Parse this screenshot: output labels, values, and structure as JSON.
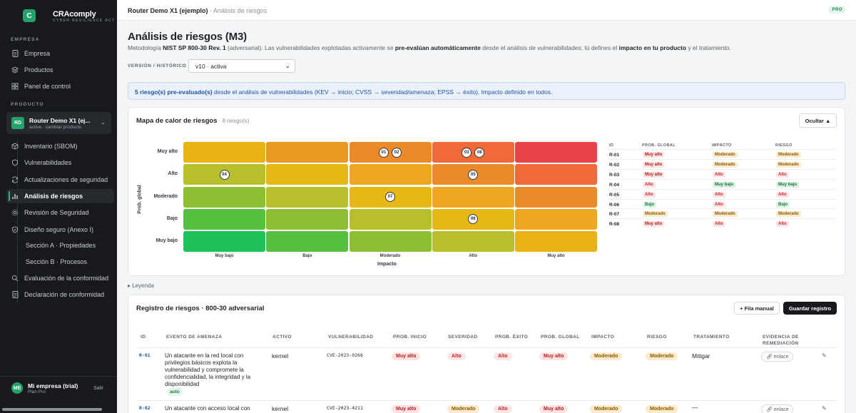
{
  "sidebar": {
    "logo_letter": "C",
    "brand": "CRAcomply",
    "brand_sub": "CYBER RESILIENCE ACT",
    "empresa_label": "EMPRESA",
    "empresa_items": [
      {
        "label": "Empresa",
        "icon": "document-icon"
      },
      {
        "label": "Productos",
        "icon": "layers-icon"
      },
      {
        "label": "Panel de control",
        "icon": "grid-icon"
      }
    ],
    "producto_label": "PRODUCTO",
    "product": {
      "initials": "RD",
      "name": "Router Demo X1 (ej...",
      "status": "active · cambiar producto"
    },
    "product_items": [
      {
        "label": "Inventario (SBOM)",
        "icon": "box-icon"
      },
      {
        "label": "Vulnerabilidades",
        "icon": "shield-icon"
      },
      {
        "label": "Actualizaciones de seguridad",
        "icon": "refresh-icon"
      },
      {
        "label": "Análisis de riesgos",
        "icon": "chart-bars-icon"
      },
      {
        "label": "Revisión de Seguridad",
        "icon": "gear-icon"
      },
      {
        "label": "Diseño seguro (Anexo I)",
        "icon": "shield-check-icon"
      },
      {
        "label": "Sección A · Propiedades",
        "icon": ""
      },
      {
        "label": "Sección B · Procesos",
        "icon": ""
      },
      {
        "label": "Evaluación de la conformidad",
        "icon": "search-icon"
      },
      {
        "label": "Declaración de conformidad",
        "icon": "document-icon"
      }
    ],
    "user": {
      "initials": "ME",
      "name": "Mi empresa (trial)",
      "plan": "Plan Pro",
      "logout": "Salir"
    }
  },
  "topbar": {
    "product": "Router Demo X1 (ejemplo)",
    "separator": " · ",
    "page": "Análisis de riesgos",
    "badge": "PRO"
  },
  "header": {
    "title": "Análisis de riesgos (M3)",
    "desc": {
      "p1": "Metodología ",
      "b1": "NIST SP 800-30 Rev. 1",
      "p2": " (adversarial). Las vulnerabilidades explotadas activamente se ",
      "b2": "pre-evalúan automáticamente",
      "p3": " desde el análisis de vulnerabilidades; tú defines el ",
      "b3": "impacto en tu producto",
      "p4": " y el tratamiento."
    },
    "version_label": "VERSIÓN / HISTÓRICO",
    "version_value": "v10 · activa"
  },
  "info": {
    "bold": "5 riesgo(s) pre-evaluado(s)",
    "text": " desde el análisis de vulnerabilidades (KEV → inicio; CVSS → severidad/amenaza; EPSS → éxito). Impacto definido en todos."
  },
  "heatmap": {
    "title": "Mapa de calor de riesgos",
    "count": " · 8 riesgo(s)",
    "hide_button": "Ocultar ▲",
    "y_title": "Prob. global",
    "x_title": "Impacto",
    "y_levels": [
      "Muy alto",
      "Alto",
      "Moderado",
      "Bajo",
      "Muy bajo"
    ],
    "x_levels": [
      "Muy bajo",
      "Bajo",
      "Moderado",
      "Alto",
      "Muy alto"
    ],
    "colors": [
      [
        "#e9b316",
        "#ea9a23",
        "#ec8a2a",
        "#ef6a37",
        "#e9434a"
      ],
      [
        "#b8bf2c",
        "#e7b714",
        "#eea623",
        "#ec8a2a",
        "#ef6a37"
      ],
      [
        "#8cbf33",
        "#b8bf2c",
        "#e7b714",
        "#eea623",
        "#ec8a2a"
      ],
      [
        "#56c03f",
        "#8cbf33",
        "#b8bf2c",
        "#e7b714",
        "#eea623"
      ],
      [
        "#22c05a",
        "#56c03f",
        "#8cbf33",
        "#b8bf2c",
        "#e9b316"
      ]
    ],
    "markers": [
      {
        "id": "01",
        "row": 0,
        "col": 2,
        "slot": 0
      },
      {
        "id": "02",
        "row": 0,
        "col": 2,
        "slot": 1
      },
      {
        "id": "03",
        "row": 0,
        "col": 3,
        "slot": 0
      },
      {
        "id": "08",
        "row": 0,
        "col": 3,
        "slot": 1
      },
      {
        "id": "04",
        "row": 1,
        "col": 0,
        "slot": 0
      },
      {
        "id": "05",
        "row": 1,
        "col": 3,
        "slot": 0
      },
      {
        "id": "07",
        "row": 2,
        "col": 2,
        "slot": 0
      },
      {
        "id": "06",
        "row": 3,
        "col": 3,
        "slot": 0
      }
    ],
    "table": {
      "headers": [
        "ID",
        "PROB. GLOBAL",
        "IMPACTO",
        "RIESGO"
      ],
      "rows": [
        {
          "id": "R-01",
          "prob": "Muy alto",
          "impact": "Moderado",
          "risk": "Moderado"
        },
        {
          "id": "R-02",
          "prob": "Muy alto",
          "impact": "Moderado",
          "risk": "Moderado"
        },
        {
          "id": "R-03",
          "prob": "Muy alto",
          "impact": "Alto",
          "risk": "Alto"
        },
        {
          "id": "R-04",
          "prob": "Alto",
          "impact": "Muy bajo",
          "risk": "Muy bajo"
        },
        {
          "id": "R-05",
          "prob": "Alto",
          "impact": "Alto",
          "risk": "Alto"
        },
        {
          "id": "R-06",
          "prob": "Bajo",
          "impact": "Alto",
          "risk": "Bajo"
        },
        {
          "id": "R-07",
          "prob": "Moderado",
          "impact": "Moderado",
          "risk": "Moderado"
        },
        {
          "id": "R-08",
          "prob": "Muy alto",
          "impact": "Alto",
          "risk": "Alto"
        }
      ]
    }
  },
  "legend_toggle": "▸ Leyenda",
  "register": {
    "title": "Registro de riesgos · 800-30 adversarial",
    "add_button": "+ Fila manual",
    "save_button": "Guardar registro",
    "headers": [
      "ID",
      "EVENTO DE AMENAZA",
      "ACTIVO",
      "VULNERABILIDAD",
      "PROB. INICIO",
      "SEVERIDAD",
      "PROB. ÉXITO",
      "PROB. GLOBAL",
      "IMPACTO",
      "RIESGO",
      "TRATAMIENTO",
      "EVIDENCIA DE\nREMEDIACIÓN"
    ],
    "rows": [
      {
        "id": "R-01",
        "event": "Un atacante en la red local con privilegios básicos explota la vulnerabilidad y compromete la confidencialidad, la integridad y la disponibilidad",
        "asset": "kernel",
        "vuln": "CVE-2023-0266",
        "p_inicio": "Muy alto",
        "severidad": "Alto",
        "p_exito": "Alto",
        "p_global": "Muy alto",
        "impacto": "Moderado",
        "riesgo": "Moderado",
        "tratamiento": "Mitigar",
        "evidence": "enlace",
        "tag": "auto"
      },
      {
        "id": "R-02",
        "event": "Un atacante con acceso local con",
        "asset": "kernel",
        "vuln": "CVE-2023-4211",
        "p_inicio": "Muy alto",
        "severidad": "Moderado",
        "p_exito": "Alto",
        "p_global": "Muy alto",
        "impacto": "Moderado",
        "riesgo": "Moderado",
        "tratamiento": "—",
        "evidence": "enlace",
        "tag": ""
      }
    ]
  }
}
